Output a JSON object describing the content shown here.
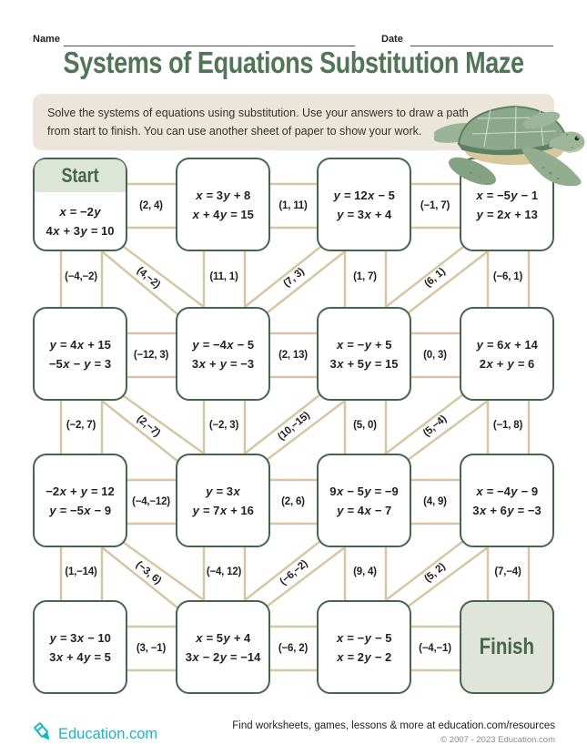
{
  "header": {
    "name_label": "Name",
    "date_label": "Date",
    "title": "Systems of Equations Substitution Maze"
  },
  "instructions": {
    "line1": "Solve the systems of equations using substitution. Use your answers to draw a path",
    "line2": "from start to finish. You can use another sheet of paper to show your work."
  },
  "maze": {
    "start_label": "Start",
    "finish_label": "Finish",
    "boxes": [
      {
        "eq1": "x = −2y",
        "eq2": "4x + 3y = 10"
      },
      {
        "eq1": "x = 3y + 8",
        "eq2": "x + 4y = 15"
      },
      {
        "eq1": "y = 12x − 5",
        "eq2": "y = 3x + 4"
      },
      {
        "eq1": "x = −5y − 1",
        "eq2": "y = 2x + 13"
      },
      {
        "eq1": "y = 4x + 15",
        "eq2": "−5x − y = 3"
      },
      {
        "eq1": "y = −4x − 5",
        "eq2": "3x + y = −3"
      },
      {
        "eq1": "x = −y + 5",
        "eq2": "3x + 5y = 15"
      },
      {
        "eq1": "y = 6x + 14",
        "eq2": "2x + y = 6"
      },
      {
        "eq1": "−2x + y = 12",
        "eq2": "y = −5x − 9"
      },
      {
        "eq1": "y = 3x",
        "eq2": "y = 7x + 16"
      },
      {
        "eq1": "9x − 5y = −9",
        "eq2": "y = 4x − 7"
      },
      {
        "eq1": "x = −4y − 9",
        "eq2": "3x + 6y = −3"
      },
      {
        "eq1": "y = 3x − 10",
        "eq2": "3x + 4y = 5"
      },
      {
        "eq1": "x = 5y + 4",
        "eq2": "3x − 2y = −14"
      },
      {
        "eq1": "x = −y − 5",
        "eq2": "x = 2y − 2"
      }
    ],
    "h_labels": [
      "(2, 4)",
      "(1, 11)",
      "(−1, 7)",
      "(−12, 3)",
      "(2, 13)",
      "(0, 3)",
      "(−4,−12)",
      "(2, 6)",
      "(4, 9)",
      "(3, −1)",
      "(−6, 2)",
      "(−4,−1)"
    ],
    "v_labels": [
      "(−4,−2)",
      "(11, 1)",
      "(1, 7)",
      "(−6, 1)",
      "(−2, 7)",
      "(−2, 3)",
      "(5, 0)",
      "(−1, 8)",
      "(1,−14)",
      "(−4, 12)",
      "(9, 4)",
      "(7,−4)"
    ],
    "d_labels": [
      "(4,−2)",
      "(7, 3)",
      "(6, 1)",
      "(2,−7)",
      "(10,−15)",
      "(5,−4)",
      "(−3, 6)",
      "(−6,−2)",
      "(5, 2)"
    ]
  },
  "footer": {
    "brand": "Education.com",
    "resources_text": "Find worksheets, games, lessons & more at education.com/resources",
    "copyright": "© 2007 - 2023 Education.com"
  },
  "colors": {
    "green_border": "#47654d",
    "green_text": "#527457",
    "sage_fill": "#dfe5da",
    "sage_head": "#dde4d8",
    "beige_box": "#ebe6d9",
    "tan_path": "#d8c5a4",
    "teal_brand": "#1db3ca",
    "ink": "#1f1f1f"
  }
}
